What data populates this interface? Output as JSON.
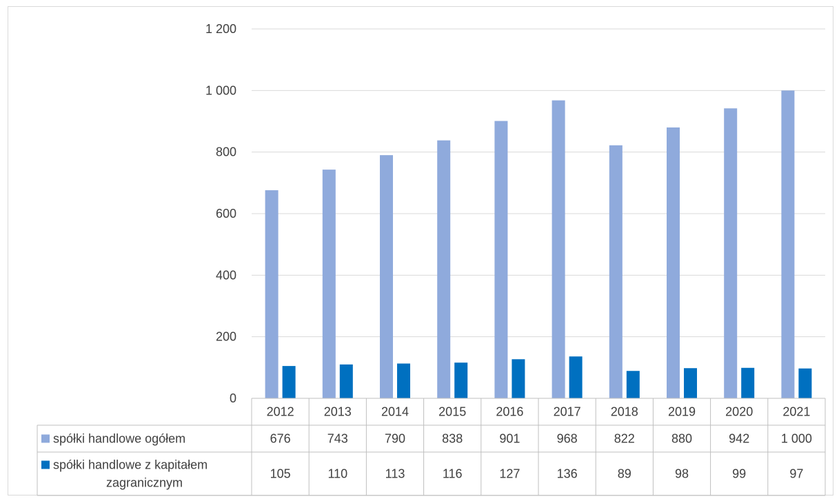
{
  "chart_data": {
    "type": "bar",
    "title": "",
    "xlabel": "",
    "ylabel": "",
    "ylim": [
      0,
      1200
    ],
    "yticks": [
      0,
      200,
      400,
      600,
      800,
      1000,
      1200
    ],
    "ytick_labels": [
      "0",
      "200",
      "400",
      "600",
      "800",
      "1 000",
      "1 200"
    ],
    "grid": true,
    "legend": "data-table",
    "categories": [
      "2012",
      "2013",
      "2014",
      "2015",
      "2016",
      "2017",
      "2018",
      "2019",
      "2020",
      "2021"
    ],
    "series": [
      {
        "name": "spółki handlowe ogółem",
        "color": "#8faadc",
        "values": [
          676,
          743,
          790,
          838,
          901,
          968,
          822,
          880,
          942,
          1000
        ],
        "labels": [
          "676",
          "743",
          "790",
          "838",
          "901",
          "968",
          "822",
          "880",
          "942",
          "1 000"
        ]
      },
      {
        "name": "spółki handlowe z kapitałem zagranicznym",
        "name_lines": [
          "spółki handlowe z kapitałem",
          "zagranicznym"
        ],
        "color": "#0070c0",
        "values": [
          105,
          110,
          113,
          116,
          127,
          136,
          89,
          98,
          99,
          97
        ],
        "labels": [
          "105",
          "110",
          "113",
          "116",
          "127",
          "136",
          "89",
          "98",
          "99",
          "97"
        ]
      }
    ]
  }
}
